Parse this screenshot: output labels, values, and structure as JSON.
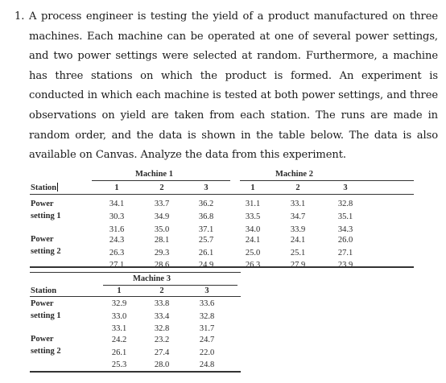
{
  "problem": {
    "number": "1.",
    "text": "A process engineer is testing the yield of a product manufactured on three machines. Each machine can be operated at one of several power settings, and two power settings were selected at random. Furthermore, a machine has three stations on which the product is formed. An experiment is conducted in which each machine is tested at both power settings, and three observations on yield are taken from each station. The runs are made in random order, and the data is shown in the table below. The data is also available on Canvas. Analyze the data from this experiment."
  },
  "table1": {
    "station_header": "Station",
    "machine1": "Machine 1",
    "machine2": "Machine 2",
    "station_labels": [
      "1",
      "2",
      "3",
      "1",
      "2",
      "3"
    ],
    "power1_label": [
      "Power",
      "setting 1"
    ],
    "power2_label": [
      "Power",
      "setting 2"
    ],
    "power1_rows": [
      [
        "34.1",
        "33.7",
        "36.2",
        "31.1",
        "33.1",
        "32.8"
      ],
      [
        "30.3",
        "34.9",
        "36.8",
        "33.5",
        "34.7",
        "35.1"
      ],
      [
        "31.6",
        "35.0",
        "37.1",
        "34.0",
        "33.9",
        "34.3"
      ]
    ],
    "power2_rows": [
      [
        "24.3",
        "28.1",
        "25.7",
        "24.1",
        "24.1",
        "26.0"
      ],
      [
        "26.3",
        "29.3",
        "26.1",
        "25.0",
        "25.1",
        "27.1"
      ],
      [
        "27.1",
        "28.6",
        "24.9",
        "26.3",
        "27.9",
        "23.9"
      ]
    ]
  },
  "table2": {
    "station_header": "Station",
    "machine3": "Machine 3",
    "station_labels": [
      "1",
      "2",
      "3"
    ],
    "power1_label": [
      "Power",
      "setting 1"
    ],
    "power2_label": [
      "Power",
      "setting 2"
    ],
    "power1_rows": [
      [
        "32.9",
        "33.8",
        "33.6"
      ],
      [
        "33.0",
        "33.4",
        "32.8"
      ],
      [
        "33.1",
        "32.8",
        "31.7"
      ]
    ],
    "power2_rows": [
      [
        "24.2",
        "23.2",
        "24.7"
      ],
      [
        "26.1",
        "27.4",
        "22.0"
      ],
      [
        "25.3",
        "28.0",
        "24.8"
      ]
    ]
  }
}
